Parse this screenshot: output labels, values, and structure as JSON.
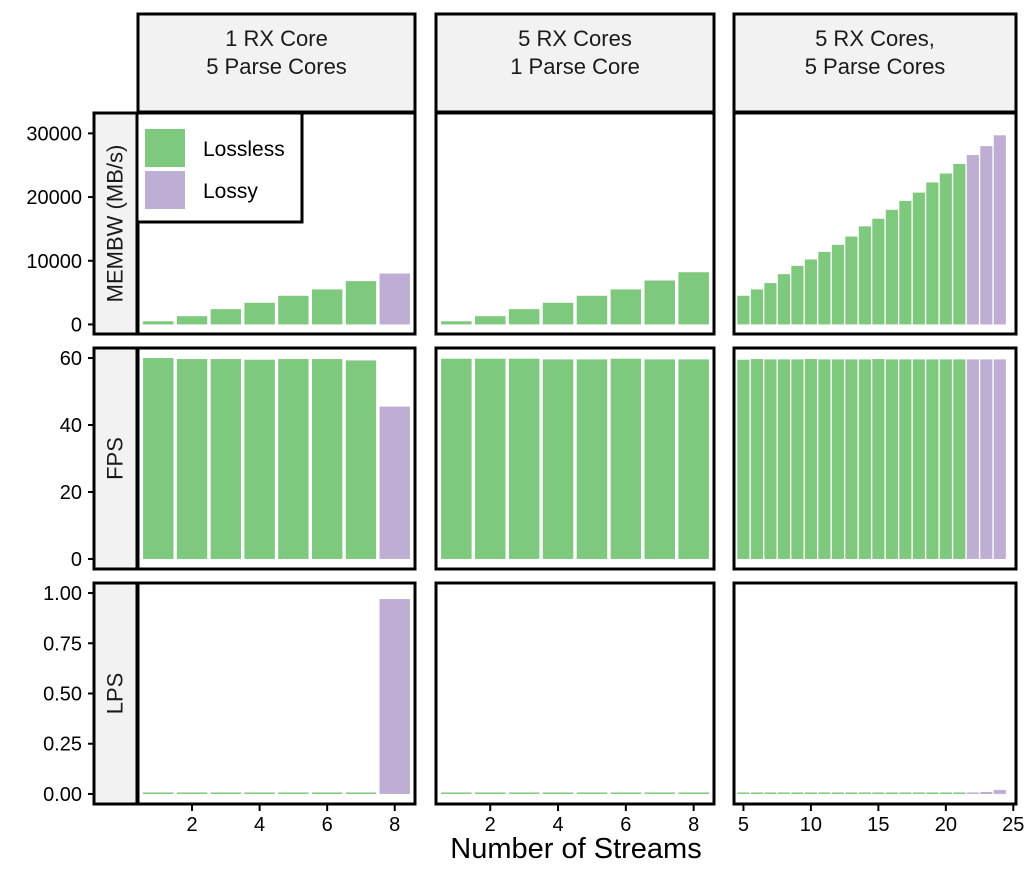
{
  "chart_data": {
    "type": "bar",
    "layout": "facet grid (3 rows x 3 columns), free y scales per row",
    "xlabel": "Number of Streams",
    "column_strips": [
      [
        "1 RX Core",
        "5 Parse Cores"
      ],
      [
        "5 RX Cores",
        "1 Parse Core"
      ],
      [
        "5 RX Cores,",
        "5 Parse Cores"
      ]
    ],
    "row_strips": [
      "MEMBW (MB/s)",
      "FPS",
      "LPS"
    ],
    "legend": {
      "position": "inside top-left of first panel",
      "entries": [
        {
          "name": "Lossless",
          "color": "#7fc97f"
        },
        {
          "name": "Lossy",
          "color": "#beaed4"
        }
      ]
    },
    "colors": {
      "Lossless": "#7fc97f",
      "Lossy": "#beaed4"
    },
    "columns": [
      {
        "xlim": [
          0.4,
          8.6
        ],
        "xticks": [
          2,
          4,
          6,
          8
        ],
        "bars": [
          {
            "x": 1,
            "type": "Lossless",
            "MEMBW": 500,
            "FPS": 60,
            "LPS": 0
          },
          {
            "x": 2,
            "type": "Lossless",
            "MEMBW": 1300,
            "FPS": 59.7,
            "LPS": 0
          },
          {
            "x": 3,
            "type": "Lossless",
            "MEMBW": 2400,
            "FPS": 59.7,
            "LPS": 0
          },
          {
            "x": 4,
            "type": "Lossless",
            "MEMBW": 3400,
            "FPS": 59.5,
            "LPS": 0
          },
          {
            "x": 5,
            "type": "Lossless",
            "MEMBW": 4500,
            "FPS": 59.7,
            "LPS": 0
          },
          {
            "x": 6,
            "type": "Lossless",
            "MEMBW": 5500,
            "FPS": 59.7,
            "LPS": 0
          },
          {
            "x": 7,
            "type": "Lossless",
            "MEMBW": 6800,
            "FPS": 59.3,
            "LPS": 0
          },
          {
            "x": 8,
            "type": "Lossy",
            "MEMBW": 8000,
            "FPS": 45.5,
            "LPS": 0.97
          }
        ]
      },
      {
        "xlim": [
          0.4,
          8.6
        ],
        "xticks": [
          2,
          4,
          6,
          8
        ],
        "bars": [
          {
            "x": 1,
            "type": "Lossless",
            "MEMBW": 500,
            "FPS": 59.8,
            "LPS": 0
          },
          {
            "x": 2,
            "type": "Lossless",
            "MEMBW": 1300,
            "FPS": 59.8,
            "LPS": 0
          },
          {
            "x": 3,
            "type": "Lossless",
            "MEMBW": 2400,
            "FPS": 59.8,
            "LPS": 0
          },
          {
            "x": 4,
            "type": "Lossless",
            "MEMBW": 3400,
            "FPS": 59.6,
            "LPS": 0
          },
          {
            "x": 5,
            "type": "Lossless",
            "MEMBW": 4500,
            "FPS": 59.6,
            "LPS": 0
          },
          {
            "x": 6,
            "type": "Lossless",
            "MEMBW": 5500,
            "FPS": 59.8,
            "LPS": 0
          },
          {
            "x": 7,
            "type": "Lossless",
            "MEMBW": 6900,
            "FPS": 59.6,
            "LPS": 0
          },
          {
            "x": 8,
            "type": "Lossless",
            "MEMBW": 8200,
            "FPS": 59.6,
            "LPS": 0
          }
        ]
      },
      {
        "xlim": [
          4.3,
          25.2
        ],
        "xticks": [
          5,
          10,
          15,
          20,
          25
        ],
        "bars": [
          {
            "x": 5,
            "type": "Lossless",
            "MEMBW": 4500,
            "FPS": 59.5,
            "LPS": 0
          },
          {
            "x": 6,
            "type": "Lossless",
            "MEMBW": 5500,
            "FPS": 59.7,
            "LPS": 0
          },
          {
            "x": 7,
            "type": "Lossless",
            "MEMBW": 6500,
            "FPS": 59.6,
            "LPS": 0
          },
          {
            "x": 8,
            "type": "Lossless",
            "MEMBW": 7900,
            "FPS": 59.6,
            "LPS": 0
          },
          {
            "x": 9,
            "type": "Lossless",
            "MEMBW": 9200,
            "FPS": 59.6,
            "LPS": 0
          },
          {
            "x": 10,
            "type": "Lossless",
            "MEMBW": 10200,
            "FPS": 59.7,
            "LPS": 0
          },
          {
            "x": 11,
            "type": "Lossless",
            "MEMBW": 11400,
            "FPS": 59.6,
            "LPS": 0
          },
          {
            "x": 12,
            "type": "Lossless",
            "MEMBW": 12500,
            "FPS": 59.6,
            "LPS": 0
          },
          {
            "x": 13,
            "type": "Lossless",
            "MEMBW": 13800,
            "FPS": 59.6,
            "LPS": 0
          },
          {
            "x": 14,
            "type": "Lossless",
            "MEMBW": 15400,
            "FPS": 59.6,
            "LPS": 0
          },
          {
            "x": 15,
            "type": "Lossless",
            "MEMBW": 16600,
            "FPS": 59.7,
            "LPS": 0
          },
          {
            "x": 16,
            "type": "Lossless",
            "MEMBW": 18000,
            "FPS": 59.6,
            "LPS": 0
          },
          {
            "x": 17,
            "type": "Lossless",
            "MEMBW": 19400,
            "FPS": 59.6,
            "LPS": 0
          },
          {
            "x": 18,
            "type": "Lossless",
            "MEMBW": 20700,
            "FPS": 59.6,
            "LPS": 0
          },
          {
            "x": 19,
            "type": "Lossless",
            "MEMBW": 22300,
            "FPS": 59.6,
            "LPS": 0
          },
          {
            "x": 20,
            "type": "Lossless",
            "MEMBW": 23700,
            "FPS": 59.6,
            "LPS": 0
          },
          {
            "x": 21,
            "type": "Lossless",
            "MEMBW": 25200,
            "FPS": 59.6,
            "LPS": 0
          },
          {
            "x": 22,
            "type": "Lossy",
            "MEMBW": 26600,
            "FPS": 59.6,
            "LPS": 0.005
          },
          {
            "x": 23,
            "type": "Lossy",
            "MEMBW": 28000,
            "FPS": 59.6,
            "LPS": 0.01
          },
          {
            "x": 24,
            "type": "Lossy",
            "MEMBW": 29700,
            "FPS": 59.6,
            "LPS": 0.02
          }
        ]
      }
    ],
    "rows": [
      {
        "metric": "MEMBW",
        "ylim": [
          -1500,
          33200
        ],
        "yticks": [
          0,
          10000,
          20000,
          30000
        ],
        "ytick_labels": [
          "0",
          "10000",
          "20000",
          "30000"
        ]
      },
      {
        "metric": "FPS",
        "ylim": [
          -3,
          63
        ],
        "yticks": [
          0,
          20,
          40,
          60
        ],
        "ytick_labels": [
          "0",
          "20",
          "40",
          "60"
        ]
      },
      {
        "metric": "LPS",
        "ylim": [
          -0.05,
          1.05
        ],
        "yticks": [
          0,
          0.25,
          0.5,
          0.75,
          1
        ],
        "ytick_labels": [
          "0.00",
          "0.25",
          "0.50",
          "0.75",
          "1.00"
        ]
      }
    ],
    "grid": false
  }
}
